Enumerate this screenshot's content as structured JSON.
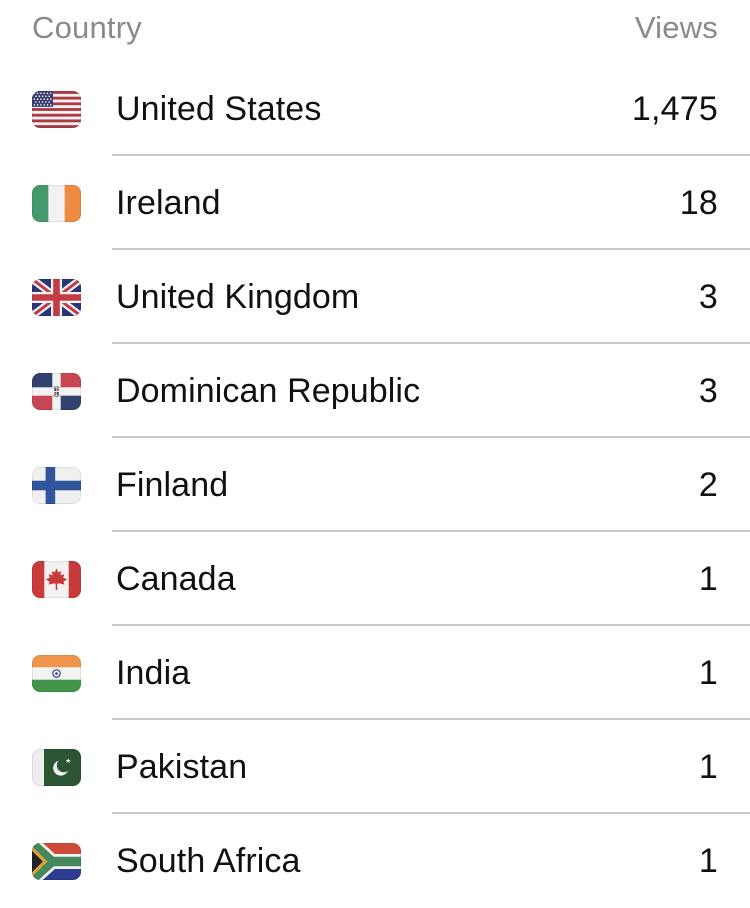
{
  "header": {
    "country_label": "Country",
    "views_label": "Views"
  },
  "table": {
    "rows": [
      {
        "country": "United States",
        "views": "1,475",
        "flag_icon": "us-flag-icon"
      },
      {
        "country": "Ireland",
        "views": "18",
        "flag_icon": "ireland-flag-icon"
      },
      {
        "country": "United Kingdom",
        "views": "3",
        "flag_icon": "uk-flag-icon"
      },
      {
        "country": "Dominican Republic",
        "views": "3",
        "flag_icon": "dominican-republic-flag-icon"
      },
      {
        "country": "Finland",
        "views": "2",
        "flag_icon": "finland-flag-icon"
      },
      {
        "country": "Canada",
        "views": "1",
        "flag_icon": "canada-flag-icon"
      },
      {
        "country": "India",
        "views": "1",
        "flag_icon": "india-flag-icon"
      },
      {
        "country": "Pakistan",
        "views": "1",
        "flag_icon": "pakistan-flag-icon"
      },
      {
        "country": "South Africa",
        "views": "1",
        "flag_icon": "south-africa-flag-icon"
      }
    ]
  },
  "colors": {
    "background": "#FFFFFF",
    "header_text": "#8A8A8E",
    "row_text": "#111111",
    "divider": "#C9C9CB"
  }
}
